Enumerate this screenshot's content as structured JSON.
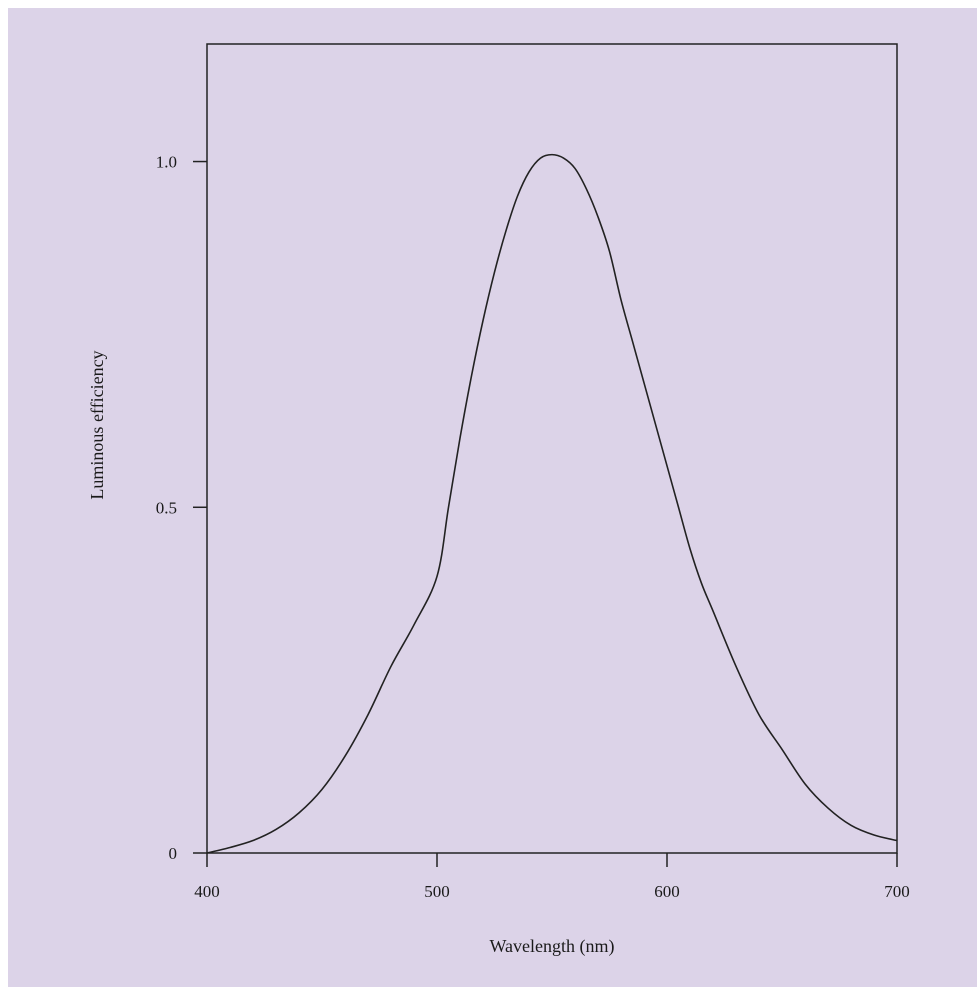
{
  "chart_data": {
    "type": "line",
    "title": "",
    "xlabel": "Wavelength (nm)",
    "ylabel": "Luminous efficiency",
    "xlim": [
      400,
      700
    ],
    "ylim": [
      0,
      1.17
    ],
    "x_ticks": [
      400,
      500,
      600,
      700
    ],
    "x_tick_labels": [
      "400",
      "500",
      "600",
      "700"
    ],
    "y_ticks": [
      0,
      0.5,
      1.0
    ],
    "y_tick_labels": [
      "0",
      "0.5",
      "1.0"
    ],
    "grid": false,
    "legend": "none",
    "colors": {
      "background": "#dcd3e8",
      "line": "#222222"
    },
    "series": [
      {
        "x": [
          400,
          410,
          420,
          430,
          440,
          450,
          460,
          470,
          480,
          490,
          500,
          505,
          510,
          515,
          520,
          525,
          530,
          535,
          540,
          545,
          550,
          555,
          560,
          565,
          570,
          575,
          580,
          585,
          590,
          595,
          600,
          605,
          610,
          615,
          620,
          630,
          640,
          650,
          660,
          670,
          680,
          690,
          700
        ],
        "y": [
          0.0,
          0.008,
          0.018,
          0.034,
          0.058,
          0.092,
          0.14,
          0.2,
          0.27,
          0.33,
          0.4,
          0.5,
          0.6,
          0.69,
          0.77,
          0.84,
          0.9,
          0.95,
          0.985,
          1.005,
          1.01,
          1.005,
          0.99,
          0.96,
          0.92,
          0.87,
          0.8,
          0.74,
          0.68,
          0.62,
          0.56,
          0.5,
          0.44,
          0.39,
          0.35,
          0.27,
          0.2,
          0.15,
          0.1,
          0.065,
          0.04,
          0.026,
          0.018
        ]
      }
    ]
  }
}
